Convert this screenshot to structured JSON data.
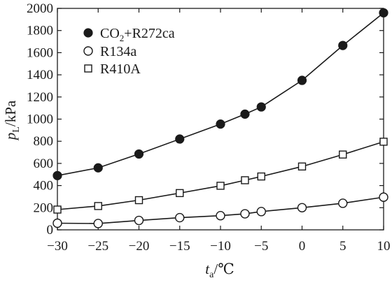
{
  "chart_data": {
    "type": "line",
    "xlabel": {
      "main": "t",
      "sub": "a",
      "unit": "/℃"
    },
    "ylabel": {
      "main": "p",
      "sub": "L",
      "unit": "/kPa"
    },
    "xlim": [
      -30,
      10
    ],
    "ylim": [
      0,
      2000
    ],
    "x_ticks": [
      -30,
      -25,
      -20,
      -15,
      -10,
      -5,
      0,
      5,
      10
    ],
    "x_tick_labels": [
      "−30",
      "−25",
      "−20",
      "−15",
      "−10",
      "−5",
      "0",
      "5",
      "10"
    ],
    "y_ticks": [
      0,
      200,
      400,
      600,
      800,
      1000,
      1200,
      1400,
      1600,
      1800,
      2000
    ],
    "y_tick_labels": [
      "0",
      "200",
      "400",
      "600",
      "800",
      "1000",
      "1200",
      "1400",
      "1600",
      "1800",
      "2000"
    ],
    "grid": false,
    "legend_position": "top-left",
    "series": [
      {
        "name": "CO2+R272ca",
        "name_parts": {
          "pre": "CO",
          "sub": "2",
          "post": "+R272ca"
        },
        "marker": "filled-circle",
        "x": [
          -30,
          -25,
          -20,
          -15,
          -10,
          -7,
          -5,
          0,
          5,
          10
        ],
        "y": [
          490,
          560,
          685,
          820,
          955,
          1045,
          1110,
          1350,
          1665,
          1960
        ]
      },
      {
        "name": "R134a",
        "marker": "open-circle",
        "x": [
          -30,
          -25,
          -20,
          -15,
          -10,
          -7,
          -5,
          0,
          5,
          10
        ],
        "y": [
          60,
          57,
          85,
          110,
          128,
          145,
          165,
          200,
          240,
          295
        ]
      },
      {
        "name": "R410A",
        "marker": "open-square",
        "x": [
          -30,
          -25,
          -20,
          -15,
          -10,
          -7,
          -5,
          0,
          5,
          10
        ],
        "y": [
          183,
          215,
          268,
          332,
          398,
          448,
          482,
          572,
          680,
          796
        ]
      }
    ]
  }
}
